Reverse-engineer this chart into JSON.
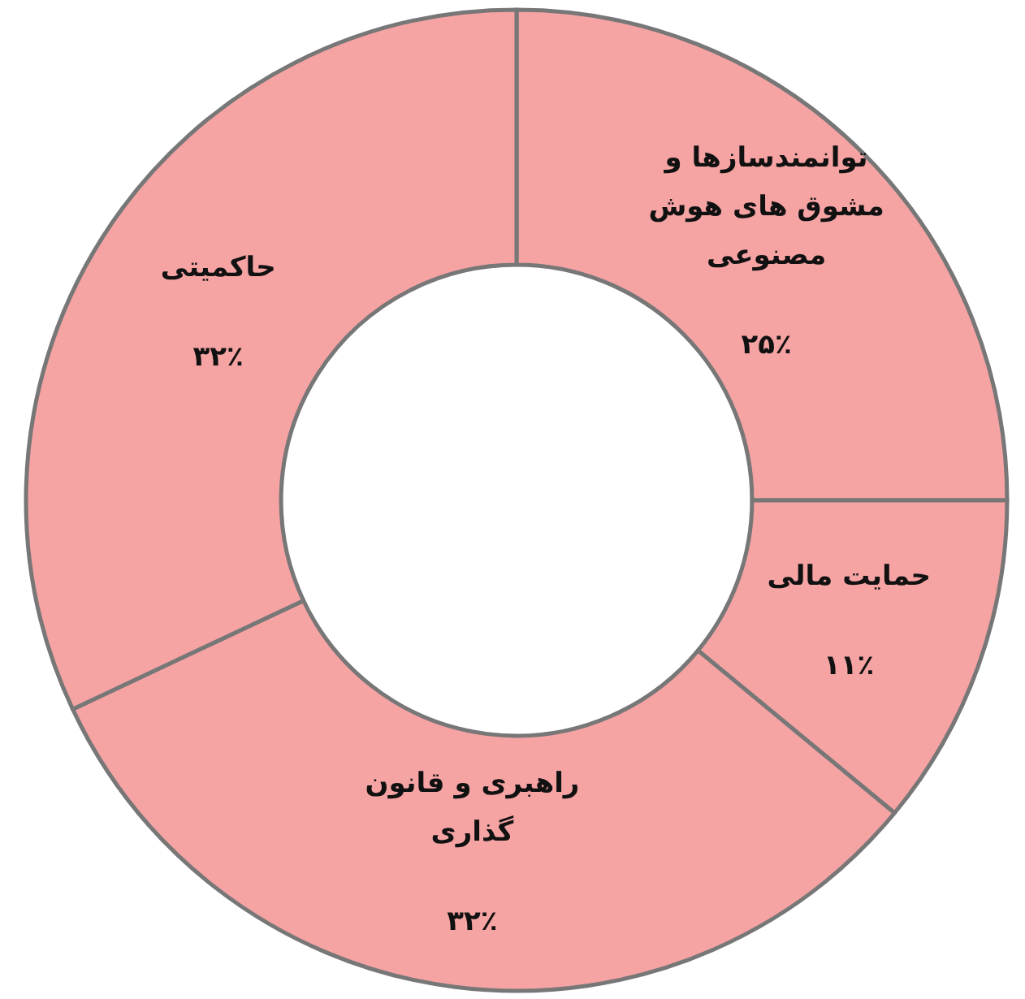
{
  "chart_data": {
    "type": "donut",
    "categories": [
      "توانمندسازها و مشوق های هوش مصنوعی",
      "حمایت مالی",
      "راهبری و قانون گذاری",
      "حاکمیتی"
    ],
    "values": [
      25,
      11,
      32,
      32
    ],
    "colors": [
      "#f5a3a3",
      "#f5a3a3",
      "#f5a3a3",
      "#f5a3a3"
    ],
    "value_labels": [
      "۲۵٪",
      "۱۱٪",
      "۳۲٪",
      "۳۲٪"
    ]
  }
}
